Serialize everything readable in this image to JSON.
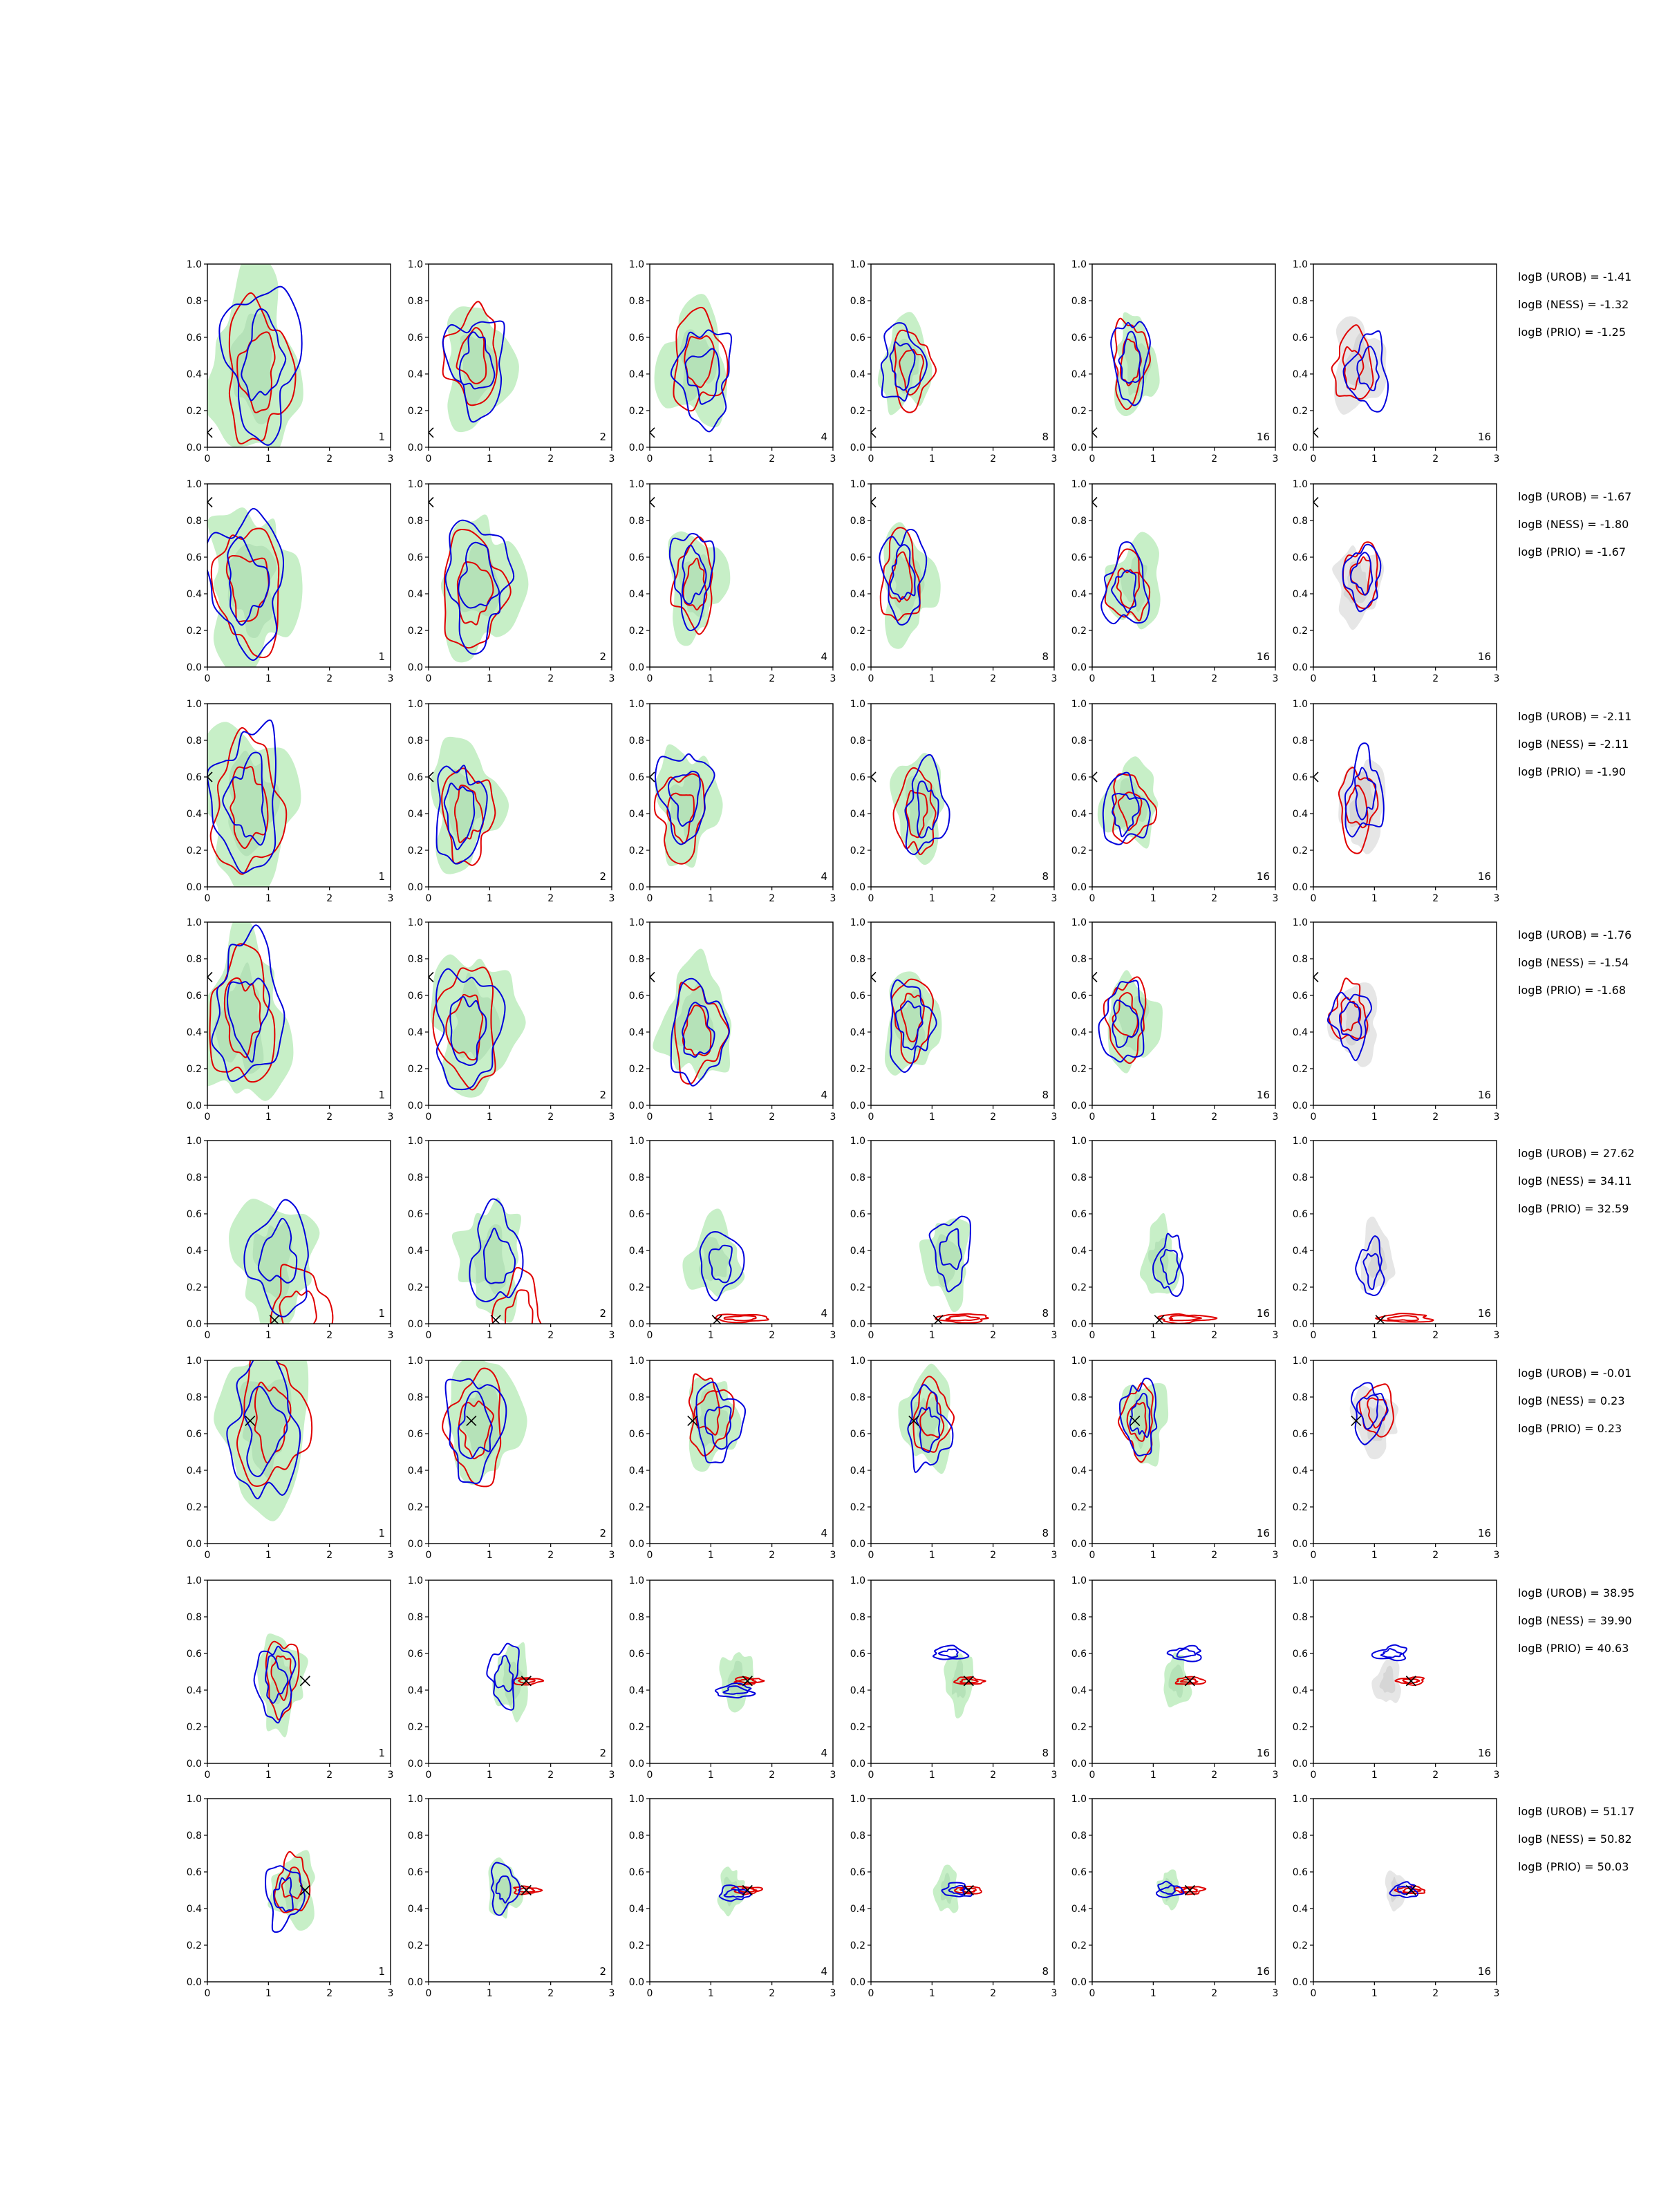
{
  "chart_data": {
    "type": "contour",
    "grid": false,
    "rows": 8,
    "cols": 6,
    "xlim": [
      0,
      3
    ],
    "ylim": [
      0,
      1.0
    ],
    "x_ticks": [
      "0",
      "1",
      "2",
      "3"
    ],
    "y_ticks": [
      "0.0",
      "0.2",
      "0.4",
      "0.6",
      "0.8",
      "1.0"
    ],
    "column_labels": [
      "1",
      "2",
      "4",
      "8",
      "16",
      "16"
    ],
    "colors": {
      "red_contour": "#e00000",
      "blue_contour": "#0000dd",
      "green_fill": "#c7efc7",
      "green_fill_inner": "#b0dfb4",
      "gray_fill": "#e6e6e6",
      "gray_fill_inner": "#d2d2d2",
      "marker": "#000000"
    },
    "rows_data": [
      {
        "logB": [
          "logB (UROB) = -1.41",
          "logB (NESS) = -1.32",
          "logB (PRIO) = -1.25"
        ],
        "truth": [
          0.0,
          0.08
        ],
        "spread": 0.9
      },
      {
        "logB": [
          "logB (UROB) = -1.67",
          "logB (NESS) = -1.80",
          "logB (PRIO) = -1.67"
        ],
        "truth": [
          0.0,
          0.9
        ],
        "spread": 0.9
      },
      {
        "logB": [
          "logB (UROB) = -2.11",
          "logB (NESS) = -2.11",
          "logB (PRIO) = -1.90"
        ],
        "truth": [
          0.0,
          0.6
        ],
        "spread": 0.9
      },
      {
        "logB": [
          "logB (UROB) = -1.76",
          "logB (NESS) = -1.54",
          "logB (PRIO) = -1.68"
        ],
        "truth": [
          0.0,
          0.7
        ],
        "spread": 0.9
      },
      {
        "logB": [
          "logB (UROB) = 27.62",
          "logB (NESS) = 34.11",
          "logB (PRIO) = 32.59"
        ],
        "truth": [
          1.1,
          0.02
        ],
        "spread": 0.7
      },
      {
        "logB": [
          "logB (UROB) = -0.01",
          "logB (NESS) = 0.23",
          "logB (PRIO) = 0.23"
        ],
        "truth": [
          0.7,
          0.67
        ],
        "spread": 0.8
      },
      {
        "logB": [
          "logB (UROB) = 38.95",
          "logB (NESS) = 39.90",
          "logB (PRIO) = 40.63"
        ],
        "truth": [
          1.6,
          0.45
        ],
        "spread": 0.5
      },
      {
        "logB": [
          "logB (UROB) = 51.17",
          "logB (NESS) = 50.82",
          "logB (PRIO) = 50.03"
        ],
        "truth": [
          1.6,
          0.5
        ],
        "spread": 0.4
      }
    ]
  }
}
